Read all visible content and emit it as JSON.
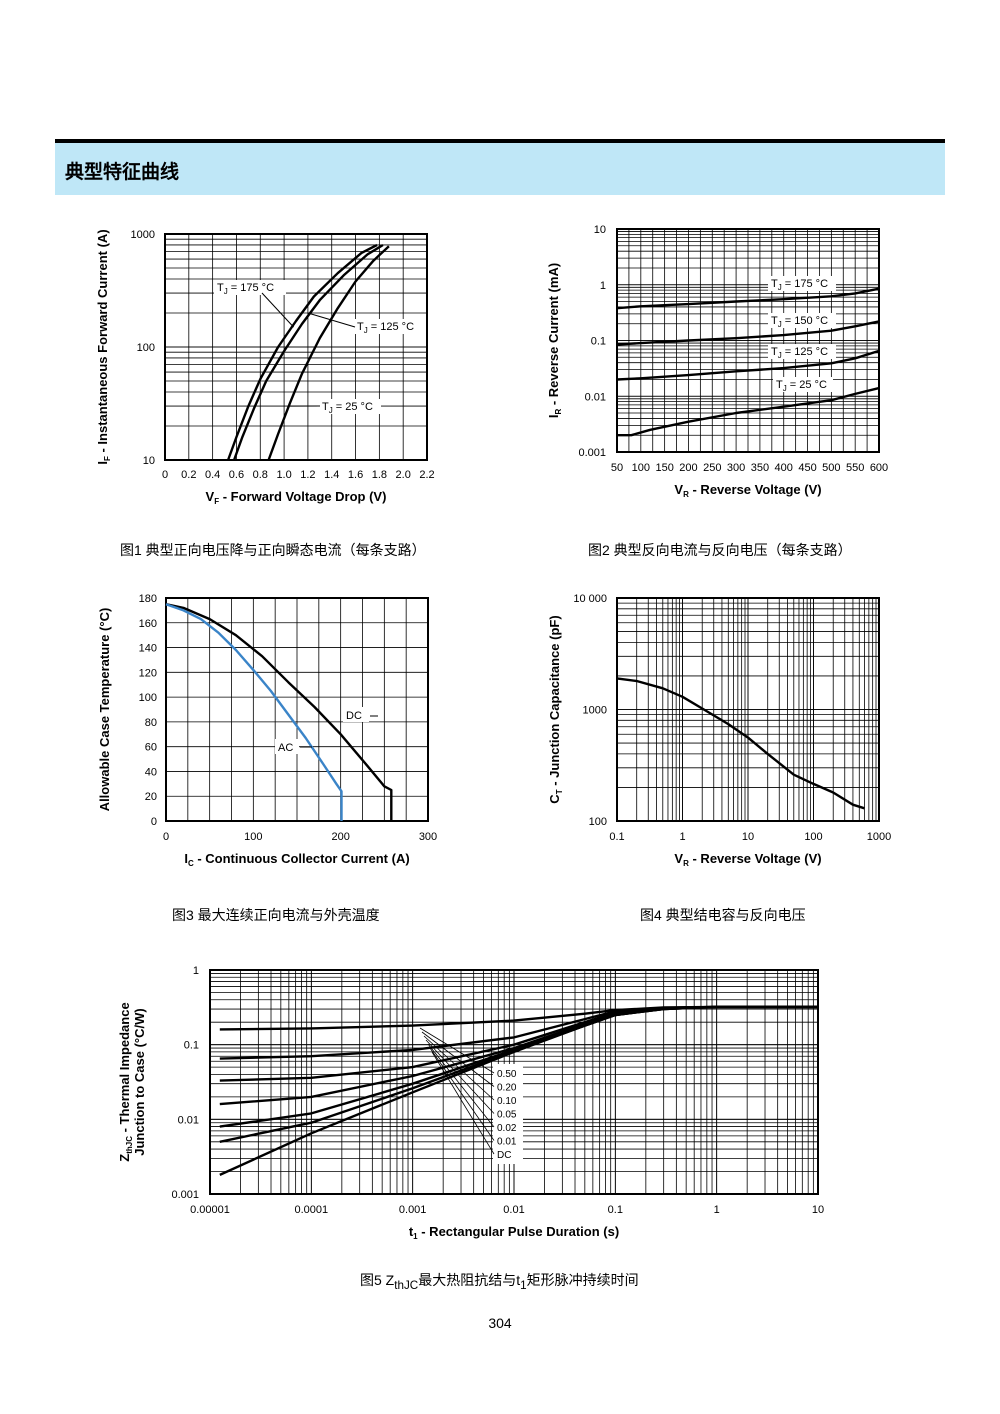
{
  "header": {
    "title": "典型特征曲线"
  },
  "captions": {
    "fig1": "图1 典型正向电压降与正向瞬态电流（每条支路）",
    "fig2": "图2 典型反向电流与反向电压（每条支路）",
    "fig3": "图3 最大连续正向电流与外壳温度",
    "fig4": "图4 典型结电容与反向电压",
    "fig5": "图5 Z<sub>thJC</sub>最大热阻抗结与t<sub>1</sub>矩形脉冲持续时间"
  },
  "page_number": "304",
  "chart_data": [
    {
      "id": "fig1",
      "type": "line",
      "xlabel": "V_F - Forward Voltage Drop (V)",
      "ylabel": "I_F - Instantaneous Forward Current (A)",
      "xlim": [
        0,
        2.2
      ],
      "ylim": [
        10,
        1000
      ],
      "yscale": "log",
      "grid": true,
      "xticks": [
        "0",
        "0.2",
        "0.4",
        "0.6",
        "0.8",
        "1.0",
        "1.2",
        "1.4",
        "1.6",
        "1.8",
        "2.0",
        "2.2"
      ],
      "yticks": [
        "10",
        "100",
        "1000"
      ],
      "series": [
        {
          "name": "T_J = 175 °C",
          "x": [
            0.53,
            0.6,
            0.7,
            0.8,
            0.95,
            1.1,
            1.25,
            1.45,
            1.65,
            1.78
          ],
          "y": [
            10,
            16,
            30,
            52,
            100,
            170,
            280,
            450,
            680,
            800
          ]
        },
        {
          "name": "T_J = 125 °C",
          "x": [
            0.58,
            0.65,
            0.75,
            0.85,
            1.0,
            1.15,
            1.3,
            1.5,
            1.7,
            1.83
          ],
          "y": [
            10,
            16,
            29,
            50,
            92,
            160,
            260,
            430,
            660,
            800
          ]
        },
        {
          "name": "T_J = 25 °C",
          "x": [
            0.87,
            0.95,
            1.05,
            1.15,
            1.3,
            1.45,
            1.6,
            1.75,
            1.88
          ],
          "y": [
            10,
            17,
            32,
            58,
            120,
            220,
            380,
            580,
            780
          ]
        }
      ]
    },
    {
      "id": "fig2",
      "type": "line",
      "xlabel": "V_R - Reverse Voltage (V)",
      "ylabel": "I_R - Reverse Current (mA)",
      "xlim": [
        50,
        600
      ],
      "ylim": [
        0.001,
        10
      ],
      "yscale": "log",
      "grid": true,
      "xticks": [
        "50",
        "100",
        "150",
        "200",
        "250",
        "300",
        "350",
        "400",
        "450",
        "500",
        "550",
        "600"
      ],
      "yticks": [
        "0.001",
        "0.01",
        "0.1",
        "1",
        "10"
      ],
      "series": [
        {
          "name": "T_J = 175 °C",
          "x": [
            50,
            100,
            200,
            300,
            400,
            500,
            550,
            600
          ],
          "y": [
            0.38,
            0.41,
            0.45,
            0.5,
            0.55,
            0.62,
            0.7,
            0.85
          ]
        },
        {
          "name": "T_J = 150 °C",
          "x": [
            50,
            100,
            200,
            300,
            400,
            500,
            550,
            600
          ],
          "y": [
            0.085,
            0.09,
            0.1,
            0.11,
            0.125,
            0.15,
            0.18,
            0.22
          ]
        },
        {
          "name": "T_J = 125 °C",
          "x": [
            50,
            100,
            200,
            300,
            400,
            500,
            550,
            600
          ],
          "y": [
            0.02,
            0.021,
            0.024,
            0.028,
            0.032,
            0.039,
            0.048,
            0.065
          ]
        },
        {
          "name": "T_J = 25 °C",
          "x": [
            50,
            80,
            120,
            200,
            300,
            400,
            500,
            550,
            600
          ],
          "y": [
            0.002,
            0.002,
            0.0025,
            0.0035,
            0.005,
            0.0065,
            0.0085,
            0.011,
            0.014
          ]
        }
      ]
    },
    {
      "id": "fig3",
      "type": "line",
      "xlabel": "I_C - Continuous Collector Current (A)",
      "ylabel": "Allowable Case Temperature (°C)",
      "xlim": [
        0,
        300
      ],
      "ylim": [
        0,
        180
      ],
      "grid": true,
      "xticks": [
        "0",
        "100",
        "200",
        "300"
      ],
      "yticks": [
        "0",
        "20",
        "40",
        "60",
        "80",
        "100",
        "120",
        "140",
        "160",
        "180"
      ],
      "series": [
        {
          "name": "DC",
          "color": "#000000",
          "x": [
            0,
            20,
            50,
            80,
            110,
            140,
            170,
            200,
            230,
            250,
            258,
            258
          ],
          "y": [
            175,
            172,
            163,
            150,
            133,
            112,
            92,
            70,
            45,
            28,
            25,
            0
          ]
        },
        {
          "name": "AC",
          "color": "#3a84c8",
          "x": [
            0,
            20,
            40,
            60,
            80,
            100,
            120,
            140,
            160,
            180,
            195,
            201,
            201
          ],
          "y": [
            175,
            170,
            163,
            152,
            138,
            122,
            105,
            86,
            67,
            46,
            30,
            24,
            0
          ]
        }
      ]
    },
    {
      "id": "fig4",
      "type": "line",
      "xlabel": "V_R - Reverse Voltage (V)",
      "ylabel": "C_T - Junction Capacitance (pF)",
      "xlim": [
        0.1,
        1000
      ],
      "ylim": [
        100,
        10000
      ],
      "xscale": "log",
      "yscale": "log",
      "grid": true,
      "xticks": [
        "0.1",
        "1",
        "10",
        "100",
        "1000"
      ],
      "yticks": [
        "100",
        "1000",
        "10 000"
      ],
      "series": [
        {
          "x": [
            0.1,
            0.2,
            0.5,
            1,
            2,
            5,
            10,
            20,
            50,
            100,
            200,
            400,
            600
          ],
          "y": [
            1900,
            1800,
            1550,
            1300,
            1020,
            740,
            560,
            400,
            260,
            215,
            180,
            140,
            130
          ]
        }
      ]
    },
    {
      "id": "fig5",
      "type": "line",
      "xlabel": "t_1 - Rectangular Pulse Duration (s)",
      "ylabel": "Z_thJC - Thermal Impedance Junction to Case (°C/W)",
      "xlim": [
        1e-05,
        10
      ],
      "ylim": [
        0.001,
        1
      ],
      "xscale": "log",
      "yscale": "log",
      "grid": true,
      "xticks": [
        "0.00001",
        "0.0001",
        "0.001",
        "0.01",
        "0.1",
        "1",
        "10"
      ],
      "yticks": [
        "0.001",
        "0.01",
        "0.1",
        "1"
      ],
      "legend": [
        "0.50",
        "0.20",
        "0.10",
        "0.05",
        "0.02",
        "0.01",
        "DC"
      ],
      "series": [
        {
          "name": "0.50",
          "x": [
            1.25e-05,
            0.0001,
            0.001,
            0.01,
            0.05,
            0.1,
            0.3,
            1,
            10
          ],
          "y": [
            0.16,
            0.165,
            0.18,
            0.21,
            0.26,
            0.29,
            0.315,
            0.32,
            0.32
          ]
        },
        {
          "name": "0.20",
          "x": [
            1.25e-05,
            0.0001,
            0.001,
            0.01,
            0.05,
            0.1,
            0.3,
            1,
            10
          ],
          "y": [
            0.065,
            0.07,
            0.085,
            0.125,
            0.22,
            0.28,
            0.31,
            0.32,
            0.32
          ]
        },
        {
          "name": "0.10",
          "x": [
            1.25e-05,
            0.0001,
            0.001,
            0.01,
            0.05,
            0.1,
            0.3,
            1,
            10
          ],
          "y": [
            0.033,
            0.036,
            0.05,
            0.1,
            0.2,
            0.27,
            0.31,
            0.32,
            0.32
          ]
        },
        {
          "name": "0.05",
          "x": [
            1.25e-05,
            0.0001,
            0.001,
            0.01,
            0.05,
            0.1,
            0.3,
            1,
            10
          ],
          "y": [
            0.016,
            0.02,
            0.038,
            0.09,
            0.19,
            0.26,
            0.31,
            0.32,
            0.32
          ]
        },
        {
          "name": "0.02",
          "x": [
            1.25e-05,
            0.0001,
            0.001,
            0.01,
            0.05,
            0.1,
            0.3,
            1,
            10
          ],
          "y": [
            0.008,
            0.012,
            0.03,
            0.085,
            0.18,
            0.25,
            0.3,
            0.32,
            0.32
          ]
        },
        {
          "name": "0.01",
          "x": [
            1.25e-05,
            0.0001,
            0.001,
            0.01,
            0.05,
            0.1,
            0.3,
            1,
            10
          ],
          "y": [
            0.005,
            0.009,
            0.026,
            0.082,
            0.18,
            0.25,
            0.3,
            0.32,
            0.32
          ]
        },
        {
          "name": "DC",
          "x": [
            1.25e-05,
            0.0001,
            0.001,
            0.01,
            0.05,
            0.1,
            0.3,
            1,
            10
          ],
          "y": [
            0.0018,
            0.0065,
            0.023,
            0.08,
            0.18,
            0.25,
            0.3,
            0.32,
            0.32
          ]
        }
      ]
    }
  ]
}
